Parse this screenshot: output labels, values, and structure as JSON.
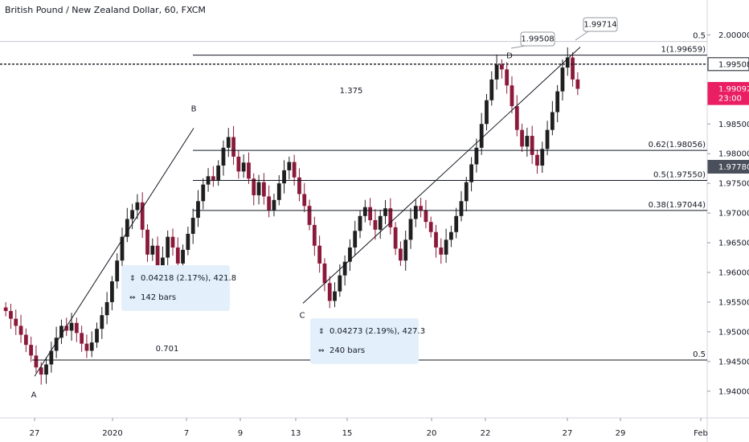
{
  "title": "British Pound / New Zealand Dollar, 60, FXCM",
  "colors": {
    "up": "#1f1f1f",
    "down": "#8b1a3a",
    "line": "#131722",
    "grid": "#f0f3fa",
    "price_red": "#e91e63",
    "price_dark": "#131722",
    "price_gray": "#4a4f5c",
    "measure_bg": "#e3f0fb",
    "fib_label": "#5b6170"
  },
  "chart_data": {
    "type": "candlestick",
    "title": "British Pound / New Zealand Dollar, 60, FXCM",
    "x_ticks": [
      "27",
      "2020",
      "7",
      "9",
      "13",
      "15",
      "20",
      "22",
      "27",
      "29",
      "Feb"
    ],
    "y_ticks": [
      "2.00000",
      "1.99500",
      "1.99000",
      "1.98500",
      "1.98000",
      "1.97500",
      "1.97000",
      "1.96500",
      "1.96000",
      "1.95500",
      "1.95000",
      "1.94500",
      "1.94000"
    ],
    "ylim": [
      1.9355,
      2.0025
    ],
    "fib_levels": [
      {
        "label": "0.5",
        "value": 1.9989
      },
      {
        "label": "1(1.99659)",
        "value": 1.99659
      },
      {
        "label": "0.62(1.98056)",
        "value": 1.98056
      },
      {
        "label": "0.5(1.97550)",
        "value": 1.9755
      },
      {
        "label": "0.38(1.97044)",
        "value": 1.97044
      },
      {
        "label": "0.5",
        "value": 1.94525
      }
    ],
    "points": [
      {
        "label": "A",
        "value": 1.9425
      },
      {
        "label": "B",
        "value": 1.9843
      },
      {
        "label": "C",
        "value": 1.9548
      },
      {
        "label": "D",
        "value": 1.99659
      }
    ],
    "ratios": [
      "1.375",
      "0.701"
    ],
    "price_tags": [
      {
        "text": "1.99508",
        "value": 1.99508,
        "style": "dark"
      },
      {
        "text": "1.99092",
        "value": 1.99092,
        "style": "red"
      },
      {
        "text": "23:00",
        "value": 1.98935,
        "style": "red"
      },
      {
        "text": "1.97780",
        "value": 1.9778,
        "style": "gray"
      }
    ],
    "callouts": [
      "1.99508",
      "1.99714"
    ],
    "dashed_level": 1.99508,
    "measures": [
      {
        "line1": "0.04218 (2.17%), 421.8",
        "line2": "142 bars"
      },
      {
        "line1": "0.04273 (2.19%), 427.3",
        "line2": "240 bars"
      }
    ],
    "series_close": [
      1.9535,
      1.9522,
      1.951,
      1.9495,
      1.9478,
      1.946,
      1.944,
      1.9428,
      1.9445,
      1.9468,
      1.949,
      1.951,
      1.9502,
      1.9515,
      1.9498,
      1.948,
      1.9468,
      1.9482,
      1.9505,
      1.9528,
      1.955,
      1.9585,
      1.962,
      1.966,
      1.969,
      1.9705,
      1.9718,
      1.9672,
      1.963,
      1.9645,
      1.96,
      1.9625,
      1.966,
      1.9642,
      1.9615,
      1.9638,
      1.9665,
      1.9692,
      1.972,
      1.9748,
      1.9762,
      1.9755,
      1.978,
      1.981,
      1.9828,
      1.9795,
      1.977,
      1.9785,
      1.9758,
      1.973,
      1.9752,
      1.9728,
      1.9705,
      1.9722,
      1.975,
      1.9772,
      1.9786,
      1.976,
      1.9732,
      1.9712,
      1.968,
      1.9645,
      1.9615,
      1.9582,
      1.9552,
      1.9568,
      1.9595,
      1.9618,
      1.9642,
      1.967,
      1.9695,
      1.971,
      1.9688,
      1.9672,
      1.9695,
      1.9708,
      1.9676,
      1.964,
      1.962,
      1.9655,
      1.969,
      1.9712,
      1.9705,
      1.9685,
      1.9668,
      1.9642,
      1.963,
      1.9655,
      1.9668,
      1.9695,
      1.972,
      1.9752,
      1.9782,
      1.981,
      1.985,
      1.989,
      1.9925,
      1.995,
      1.9942,
      1.9915,
      1.988,
      1.984,
      1.9812,
      1.983,
      1.9798,
      1.978,
      1.9808,
      1.984,
      1.987,
      1.9905,
      1.9945,
      1.9962,
      1.9925,
      1.99092
    ]
  }
}
